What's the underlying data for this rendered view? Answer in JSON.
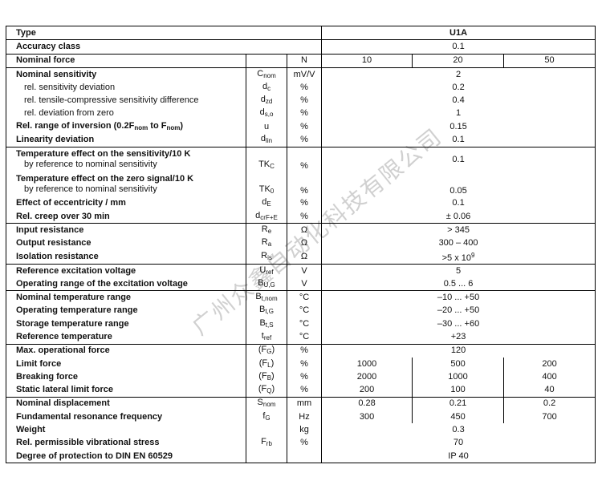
{
  "watermark": "广州众鑫自动化科技有限公司",
  "header": {
    "type_label": "Type",
    "type_value": "U1A"
  },
  "rows": [
    {
      "label": "Accuracy class",
      "symbol": null,
      "unit": "",
      "value": "0.1",
      "group_top": true
    },
    {
      "label": "Nominal force",
      "symbol": null,
      "unit": "N",
      "values": [
        "10",
        "20",
        "50"
      ],
      "group_top": true
    },
    {
      "label": "Nominal sensitivity",
      "symbol": {
        "base": "C",
        "sub": "nom"
      },
      "unit": "mV/V",
      "value": "2",
      "group_top": true
    },
    {
      "label": "rel. sensitivity deviation",
      "indent": true,
      "symbol": {
        "base": "d",
        "sub": "c"
      },
      "unit": "%",
      "value": "0.2"
    },
    {
      "label": "rel. tensile-compressive sensitivity difference",
      "indent": true,
      "symbol": {
        "base": "d",
        "sub": "zd"
      },
      "unit": "%",
      "value": "0.4"
    },
    {
      "label": "rel. deviation from zero",
      "indent": true,
      "symbol": {
        "base": "d",
        "sub": "s,o"
      },
      "unit": "%",
      "value": "1"
    },
    {
      "label_parts": [
        {
          "text": "Rel. range of inversion (0.2F"
        },
        {
          "sub": "nom"
        },
        {
          "text": " to F"
        },
        {
          "sub": "nom"
        },
        {
          "text": ")"
        }
      ],
      "symbol": {
        "base": "u"
      },
      "unit": "%",
      "value": "0.15"
    },
    {
      "label": "Linearity deviation",
      "symbol": {
        "base": "d",
        "sub": "lin"
      },
      "unit": "%",
      "value": "0.1"
    },
    {
      "label": "Temperature effect on the sensitivity/10 K",
      "sublabel": "by reference to nominal sensitivity",
      "symbol": {
        "base": "TK",
        "sub": "C"
      },
      "unit": "%",
      "value": "0.1",
      "group_top": true,
      "two_line": true,
      "value_middle": true
    },
    {
      "label": "Temperature effect on the zero signal/10 K",
      "sublabel": "by reference to nominal sensitivity",
      "symbol": {
        "base": "TK",
        "sub": "0"
      },
      "unit": "%",
      "value": "0.05",
      "two_line": true
    },
    {
      "label": "Effect of eccentricity / mm",
      "symbol": {
        "base": "d",
        "sub": "E"
      },
      "unit": "%",
      "value": "0.1"
    },
    {
      "label": "Rel. creep over 30 min",
      "symbol": {
        "base": "d",
        "sub": "crF+E"
      },
      "unit": "%",
      "value": "± 0.06"
    },
    {
      "label": "Input resistance",
      "symbol": {
        "base": "R",
        "sub": "e"
      },
      "unit": "Ω",
      "value": "> 345",
      "group_top": true
    },
    {
      "label": "Output resistance",
      "symbol": {
        "base": "R",
        "sub": "a"
      },
      "unit": "Ω",
      "value": "300 – 400"
    },
    {
      "label": "Isolation resistance",
      "symbol": {
        "base": "R",
        "sub": "is"
      },
      "unit": "Ω",
      "value": ">5 x 10",
      "value_sup": "9"
    },
    {
      "label": "Reference excitation voltage",
      "symbol": {
        "base": "U",
        "sub": "ref"
      },
      "unit": "V",
      "value": "5",
      "group_top": true
    },
    {
      "label": "Operating range of the excitation voltage",
      "symbol": {
        "base": "B",
        "sub": "U,G"
      },
      "unit": "V",
      "value": "0.5 ... 6"
    },
    {
      "label": "Nominal temperature range",
      "symbol": {
        "base": "B",
        "sub": "t,nom"
      },
      "unit": "°C",
      "value": "–10 ... +50",
      "group_top": true
    },
    {
      "label": "Operating temperature range",
      "symbol": {
        "base": "B",
        "sub": "t,G"
      },
      "unit": "°C",
      "value": "–20 ... +50"
    },
    {
      "label": "Storage temperature range",
      "symbol": {
        "base": "B",
        "sub": "t,S"
      },
      "unit": "°C",
      "value": "–30 ... +60"
    },
    {
      "label": "Reference temperature",
      "symbol": {
        "base": "t",
        "sub": "ref"
      },
      "unit": "°C",
      "value": "+23"
    },
    {
      "label": "Max. operational force",
      "symbol": {
        "base": "(F",
        "sub": "G",
        "suffix": ")"
      },
      "unit": "%",
      "value": "120",
      "group_top": true
    },
    {
      "label": "Limit force",
      "symbol": {
        "base": "(F",
        "sub": "L",
        "suffix": ")"
      },
      "unit": "%",
      "values": [
        "1000",
        "500",
        "200"
      ]
    },
    {
      "label": "Breaking force",
      "symbol": {
        "base": "(F",
        "sub": "B",
        "suffix": ")"
      },
      "unit": "%",
      "values": [
        "2000",
        "1000",
        "400"
      ]
    },
    {
      "label": "Static lateral limit force",
      "symbol": {
        "base": "(F",
        "sub": "Q",
        "suffix": ")"
      },
      "unit": "%",
      "values": [
        "200",
        "100",
        "40"
      ]
    },
    {
      "label": "Nominal displacement",
      "symbol": {
        "base": "S",
        "sub": "nom"
      },
      "unit": "mm",
      "values": [
        "0.28",
        "0.21",
        "0.2"
      ],
      "group_top": true
    },
    {
      "label": "Fundamental resonance frequency",
      "symbol": {
        "base": "f",
        "sub": "G"
      },
      "unit": "Hz",
      "values": [
        "300",
        "450",
        "700"
      ]
    },
    {
      "label": "Weight",
      "symbol": null,
      "unit": "kg",
      "value": "0.3"
    },
    {
      "label": "Rel. permissible vibrational stress",
      "symbol": {
        "base": "F",
        "sub": "rb"
      },
      "unit": "%",
      "value": "70"
    },
    {
      "label": "Degree of protection to DIN EN 60529",
      "symbol": null,
      "unit": "",
      "value": "IP 40"
    }
  ]
}
